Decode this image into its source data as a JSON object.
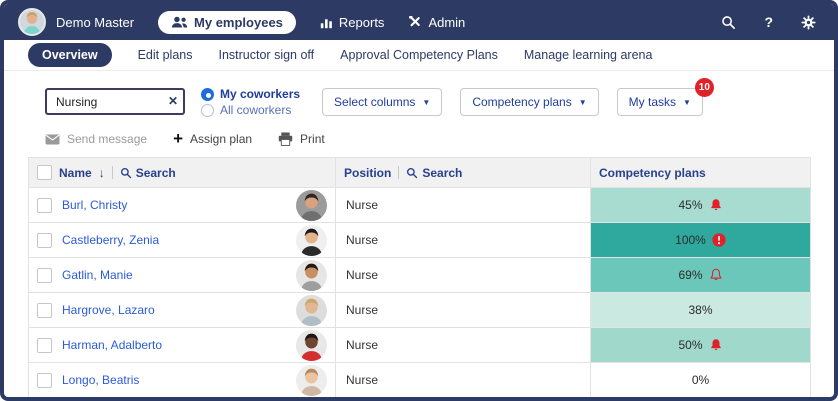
{
  "topbar": {
    "user_name": "Demo Master",
    "nav": [
      {
        "label": "My employees",
        "icon": "people-icon",
        "active": true
      },
      {
        "label": "Reports",
        "icon": "bar-chart-icon",
        "active": false
      },
      {
        "label": "Admin",
        "icon": "tools-icon",
        "active": false
      }
    ],
    "right_icons": [
      "search",
      "help",
      "settings"
    ]
  },
  "tabs": [
    {
      "label": "Overview",
      "active": true
    },
    {
      "label": "Edit plans",
      "active": false
    },
    {
      "label": "Instructor sign off",
      "active": false
    },
    {
      "label": "Approval Competency Plans",
      "active": false
    },
    {
      "label": "Manage learning arena",
      "active": false
    }
  ],
  "filters": {
    "search_value": "Nursing",
    "radio_options": [
      {
        "label": "My coworkers",
        "selected": true
      },
      {
        "label": "All coworkers",
        "selected": false
      }
    ],
    "dropdowns": [
      {
        "label": "Select columns",
        "badge": ""
      },
      {
        "label": "Competency plans",
        "badge": ""
      },
      {
        "label": "My tasks",
        "badge": "10"
      }
    ]
  },
  "actions": [
    {
      "label": "Send message",
      "icon": "envelope-icon",
      "disabled": true
    },
    {
      "label": "Assign plan",
      "icon": "plus-icon",
      "disabled": false
    },
    {
      "label": "Print",
      "icon": "printer-icon",
      "disabled": false
    }
  ],
  "table": {
    "columns": [
      {
        "label": "Name",
        "sort": "↓",
        "search_label": "Search"
      },
      {
        "label": "Position",
        "search_label": "Search"
      },
      {
        "label": "Competency plans"
      }
    ],
    "rows": [
      {
        "name": "Burl, Christy",
        "position": "Nurse",
        "percent": "45%",
        "status_icon": "bell-filled",
        "cell_color": "#a9dcd1",
        "avatar": {
          "bg": "#9b9b9b",
          "skin": "#d9a17f",
          "hair": "#33241c",
          "shirt": "#6f6f6f"
        }
      },
      {
        "name": "Castleberry, Zenia",
        "position": "Nurse",
        "percent": "100%",
        "status_icon": "alert-circle",
        "cell_color": "#2fa99e",
        "avatar": {
          "bg": "#efefef",
          "skin": "#e3b38c",
          "hair": "#1a1a1a",
          "shirt": "#2b2b2b"
        }
      },
      {
        "name": "Gatlin, Manie",
        "position": "Nurse",
        "percent": "69%",
        "status_icon": "bell-outline",
        "cell_color": "#6ac7ba",
        "avatar": {
          "bg": "#e6e6e6",
          "skin": "#c98e62",
          "hair": "#241a12",
          "shirt": "#9e9e9e"
        }
      },
      {
        "name": "Hargrove, Lazaro",
        "position": "Nurse",
        "percent": "38%",
        "status_icon": "none",
        "cell_color": "#c9e9e1",
        "avatar": {
          "bg": "#dddddd",
          "skin": "#e3b693",
          "hair": "#caa86a",
          "shirt": "#b0bec5"
        }
      },
      {
        "name": "Harman, Adalberto",
        "position": "Nurse",
        "percent": "50%",
        "status_icon": "bell-filled",
        "cell_color": "#a0d8cc",
        "avatar": {
          "bg": "#e8e8e8",
          "skin": "#6e4630",
          "hair": "#1c1410",
          "shirt": "#d32f2f"
        }
      },
      {
        "name": "Longo, Beatris",
        "position": "Nurse",
        "percent": "0%",
        "status_icon": "none",
        "cell_color": "#ffffff",
        "avatar": {
          "bg": "#ededed",
          "skin": "#ecc3a1",
          "hair": "#b98c5f",
          "shirt": "#cfb9a5"
        }
      }
    ]
  },
  "colors": {
    "brand_navy": "#2c3a64",
    "link_blue": "#2b5bd7",
    "header_blue": "#27418f",
    "alert_red": "#e02128",
    "teal_100": "#2fa99e",
    "teal_69": "#6ac7ba",
    "teal_50": "#a0d8cc",
    "teal_45": "#a9dcd1",
    "teal_38": "#c9e9e1"
  }
}
